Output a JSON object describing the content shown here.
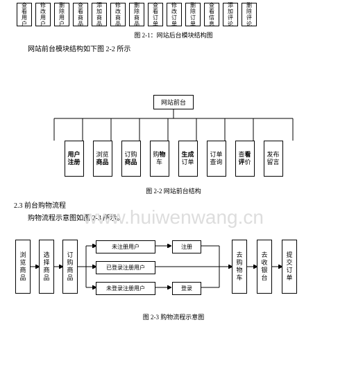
{
  "colors": {
    "bg": "#ffffff",
    "text": "#000000",
    "line": "#000000",
    "watermark": "#dddddd"
  },
  "top_boxes": [
    "查看用户",
    "修改用户",
    "删除用户",
    "查看商品",
    "添加商品",
    "修改商品",
    "删除商品",
    "查看订单",
    "修改订单",
    "删除订单",
    "查看信息",
    "添加评论",
    "删除评论"
  ],
  "caption_2_1": "图 2-1：网站后台模块结构图",
  "line_after_2_1": "网站前台模块结构如下图 2-2 所示",
  "tree": {
    "root": "网站前台",
    "leaves": [
      {
        "text": "用户注册",
        "bold": true
      },
      {
        "text": "浏览商品",
        "bold_partial": "商品"
      },
      {
        "text": "订购商品",
        "bold_partial": "商品"
      },
      {
        "text": "购物车",
        "bold_partial": "物"
      },
      {
        "text": "生成订单",
        "bold_partial": "生成"
      },
      {
        "text": "订单查询",
        "bold": false
      },
      {
        "text": "查看评价",
        "bold_partial": "看评"
      },
      {
        "text": "发布留言",
        "bold": false
      }
    ]
  },
  "caption_2_2": "图 2-2 网站前台结构",
  "section_2_3_head": "2.3 前台购物流程",
  "section_2_3_line": "购物流程示意图如图 2-3 所示。",
  "flow": {
    "left_cols": [
      "浏览商品",
      "选择商品",
      "订购商品"
    ],
    "mid_rows": [
      "未注册用户",
      "已登录注册用户",
      "未登录注册用户"
    ],
    "action1": "注册",
    "action2": "登录",
    "right_cols": [
      "去购物车",
      "去收银台",
      "提交订单"
    ]
  },
  "caption_2_3": "图 2-3 购物流程示意图",
  "watermark": "www.huiwenwang.cn"
}
